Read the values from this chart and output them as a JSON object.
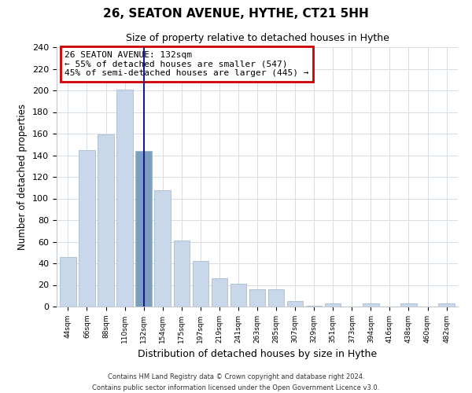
{
  "title": "26, SEATON AVENUE, HYTHE, CT21 5HH",
  "subtitle": "Size of property relative to detached houses in Hythe",
  "xlabel": "Distribution of detached houses by size in Hythe",
  "ylabel": "Number of detached properties",
  "bar_labels": [
    "44sqm",
    "66sqm",
    "88sqm",
    "110sqm",
    "132sqm",
    "154sqm",
    "175sqm",
    "197sqm",
    "219sqm",
    "241sqm",
    "263sqm",
    "285sqm",
    "307sqm",
    "329sqm",
    "351sqm",
    "373sqm",
    "394sqm",
    "416sqm",
    "438sqm",
    "460sqm",
    "482sqm"
  ],
  "bar_values": [
    46,
    145,
    159,
    201,
    144,
    108,
    61,
    42,
    26,
    21,
    16,
    16,
    5,
    1,
    3,
    0,
    3,
    0,
    3,
    0,
    3
  ],
  "highlight_index": 4,
  "bar_color_normal": "#c8d8ea",
  "bar_color_highlight": "#7a9fc0",
  "bar_edge_color": "#9ab4c8",
  "highlight_line_color": "#1a1a8c",
  "annotation_box_edge": "#cc0000",
  "annotation_line1": "26 SEATON AVENUE: 132sqm",
  "annotation_line2": "← 55% of detached houses are smaller (547)",
  "annotation_line3": "45% of semi-detached houses are larger (445) →",
  "ylim": [
    0,
    240
  ],
  "yticks": [
    0,
    20,
    40,
    60,
    80,
    100,
    120,
    140,
    160,
    180,
    200,
    220,
    240
  ],
  "footer_line1": "Contains HM Land Registry data © Crown copyright and database right 2024.",
  "footer_line2": "Contains public sector information licensed under the Open Government Licence v3.0."
}
